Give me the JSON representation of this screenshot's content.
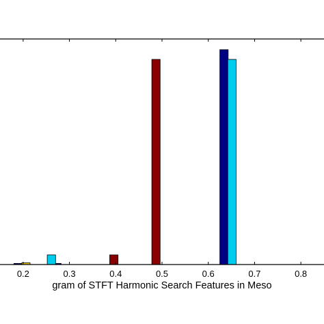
{
  "chart_data": {
    "type": "bar",
    "xlabel": "gram of STFT Harmonic Search Features in Meso",
    "ylabel": "",
    "title": "",
    "xlim": [
      0.15,
      0.85
    ],
    "ylim": [
      0,
      1.05
    ],
    "x_ticks": [
      0.2,
      0.3,
      0.4,
      0.5,
      0.6,
      0.7,
      0.8
    ],
    "x_tick_labels": [
      "0.2",
      "0.3",
      "0.4",
      "0.5",
      "0.6",
      "0.7",
      "0.8"
    ],
    "grid": false,
    "bar_width": 0.018,
    "series": [
      {
        "color": "#000080",
        "points": [
          {
            "x": 0.189,
            "y": 0.005
          },
          {
            "x": 0.273,
            "y": 0.005
          },
          {
            "x": 0.634,
            "y": 1.0
          }
        ]
      },
      {
        "color": "#00CCEE",
        "points": [
          {
            "x": 0.261,
            "y": 0.045
          },
          {
            "x": 0.651,
            "y": 0.955
          }
        ]
      },
      {
        "color": "#EECC00",
        "points": [
          {
            "x": 0.206,
            "y": 0.008
          }
        ]
      },
      {
        "color": "#8B0000",
        "points": [
          {
            "x": 0.396,
            "y": 0.045
          },
          {
            "x": 0.487,
            "y": 0.955
          }
        ]
      }
    ]
  }
}
